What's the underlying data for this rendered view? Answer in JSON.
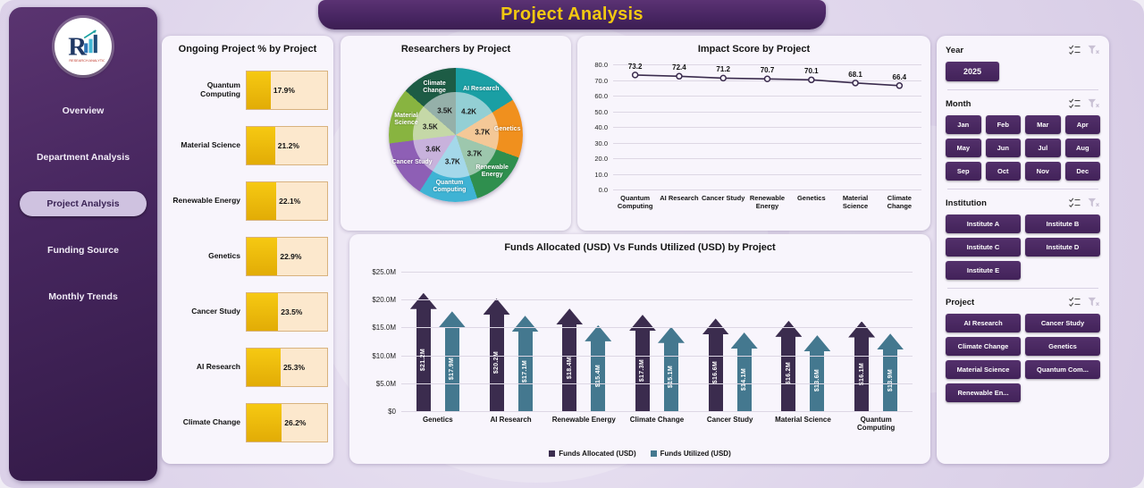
{
  "app": {
    "title": "Project Analysis"
  },
  "sidebar": {
    "items": [
      "Overview",
      "Department Analysis",
      "Project Analysis",
      "Funding Source",
      "Monthly Trends"
    ],
    "active": "Project Analysis"
  },
  "filters": {
    "year": {
      "label": "Year",
      "options": [
        "2025"
      ]
    },
    "month": {
      "label": "Month",
      "options": [
        "Jan",
        "Feb",
        "Mar",
        "Apr",
        "May",
        "Jun",
        "Jul",
        "Aug",
        "Sep",
        "Oct",
        "Nov",
        "Dec"
      ]
    },
    "institution": {
      "label": "Institution",
      "options": [
        "Institute A",
        "Institute B",
        "Institute C",
        "Institute D",
        "Institute E"
      ]
    },
    "project": {
      "label": "Project",
      "options": [
        "AI Research",
        "Cancer Study",
        "Climate Change",
        "Genetics",
        "Material Science",
        "Quantum Com...",
        "Renewable En..."
      ]
    }
  },
  "chart_data": [
    {
      "id": "ongoing",
      "type": "bar",
      "orientation": "horizontal",
      "title": "Ongoing Project % by Project",
      "categories": [
        "Quantum Computing",
        "Material Science",
        "Renewable Energy",
        "Genetics",
        "Cancer Study",
        "AI Research",
        "Climate Change"
      ],
      "values": [
        17.9,
        21.2,
        22.1,
        22.9,
        23.5,
        25.3,
        26.2
      ],
      "labels": [
        "17.9%",
        "21.2%",
        "22.1%",
        "22.9%",
        "23.5%",
        "25.3%",
        "26.2%"
      ],
      "xlim": [
        0,
        60
      ],
      "bar_color": "#ecb40a",
      "track_color": "#fce8cd"
    },
    {
      "id": "researchers",
      "type": "pie",
      "title": "Researchers by Project",
      "segments": [
        {
          "label": "AI Research",
          "value": 4.2,
          "display": "4.2K",
          "color": "#1a9fa4"
        },
        {
          "label": "Genetics",
          "value": 3.7,
          "display": "3.7K",
          "color": "#f0901e"
        },
        {
          "label": "Renewable Energy",
          "value": 3.7,
          "display": "3.7K",
          "color": "#2f8f4e"
        },
        {
          "label": "Quantum Computing",
          "value": 3.7,
          "display": "3.7K",
          "color": "#3fb3d4"
        },
        {
          "label": "Cancer Study",
          "value": 3.6,
          "display": "3.6K",
          "color": "#8e5fb5"
        },
        {
          "label": "Material Science",
          "value": 3.5,
          "display": "3.5K",
          "color": "#88b440"
        },
        {
          "label": "Climate Change",
          "value": 3.5,
          "display": "3.5K",
          "color": "#1d5c45"
        }
      ]
    },
    {
      "id": "impact",
      "type": "line",
      "title": "Impact Score by Project",
      "categories": [
        "Quantum Computing",
        "AI Research",
        "Cancer Study",
        "Renewable Energy",
        "Genetics",
        "Material Science",
        "Climate Change"
      ],
      "values": [
        73.2,
        72.4,
        71.2,
        70.7,
        70.1,
        68.1,
        66.4
      ],
      "ylim": [
        0,
        80
      ],
      "ytick_step": 10,
      "grid": true,
      "line_color": "#3b2c4e"
    },
    {
      "id": "funds",
      "type": "bar",
      "title": "Funds Allocated (USD) Vs Funds Utilized (USD) by Project",
      "categories": [
        "Genetics",
        "AI Research",
        "Renewable Energy",
        "Climate Change",
        "Cancer Study",
        "Material Science",
        "Quantum Computing"
      ],
      "series": [
        {
          "name": "Funds Allocated (USD)",
          "color": "#3b2c4e",
          "values": [
            21.2,
            20.2,
            18.4,
            17.3,
            16.6,
            16.2,
            16.1
          ],
          "labels": [
            "$21.2M",
            "$20.2M",
            "$18.4M",
            "$17.3M",
            "$16.6M",
            "$16.2M",
            "$16.1M"
          ]
        },
        {
          "name": "Funds Utilized (USD)",
          "color": "#44788f",
          "values": [
            17.9,
            17.1,
            15.4,
            15.1,
            14.1,
            13.6,
            13.9
          ],
          "labels": [
            "$17.9M",
            "$17.1M",
            "$15.4M",
            "$15.1M",
            "$14.1M",
            "$13.6M",
            "$13.9M"
          ]
        }
      ],
      "ylim": [
        0,
        25
      ],
      "yticks": [
        "$0",
        "$5.0M",
        "$10.0M",
        "$15.0M",
        "$20.0M",
        "$25.0M"
      ],
      "legend_position": "bottom"
    }
  ],
  "colors": {
    "accent_purple": "#46265e",
    "banner_text": "#f2c811",
    "panel_bg": "#f8f5fc"
  }
}
